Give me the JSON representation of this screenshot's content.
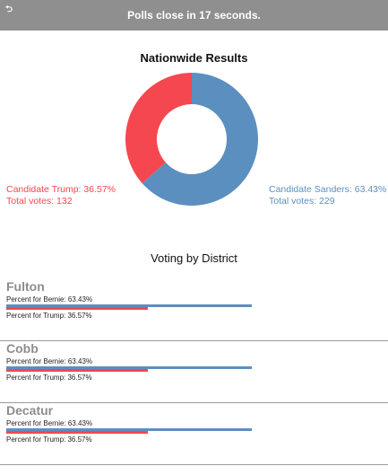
{
  "topbar": {
    "logout_icon": "logout-icon",
    "message": "Polls close in 17 seconds."
  },
  "summary": {
    "title": "Nationwide Results",
    "trump": {
      "label": "Candidate Trump: 36.57%",
      "votes": "Total votes: 132",
      "percent": 36.57,
      "color": "#f5474f"
    },
    "sanders": {
      "label": "Candidate Sanders: 63.43%",
      "votes": "Total votes: 229",
      "percent": 63.43,
      "color": "#5b8fc0"
    }
  },
  "districts_title": "Voting by District",
  "districts": [
    {
      "name": "Fulton",
      "bernie_label": "Percent for Bernie: 63.43%",
      "trump_label": "Percent for Trump: 36.57%",
      "bernie": 63.43,
      "trump": 36.57
    },
    {
      "name": "Cobb",
      "bernie_label": "Percent for Bernie: 63.43%",
      "trump_label": "Percent for Trump: 36.57%",
      "bernie": 63.43,
      "trump": 36.57
    },
    {
      "name": "Decatur",
      "bernie_label": "Percent for Bernie: 63.43%",
      "trump_label": "Percent for Trump: 36.57%",
      "bernie": 63.43,
      "trump": 36.57
    }
  ]
}
